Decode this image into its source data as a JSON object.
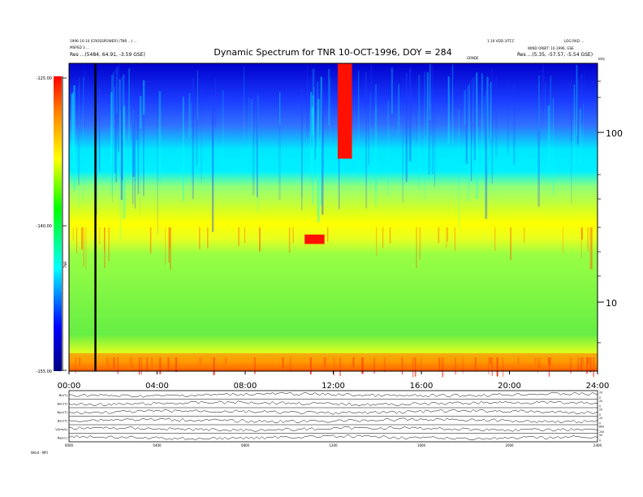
{
  "chart_data": [
    {
      "type": "heatmap",
      "title": "Dynamic Spectrum for TNR 10-OCT-1996, DOY = 284",
      "header_left": [
        "1996-10-10 [CROSSPOWER] (TNR ...) ...",
        "MSPSD 3 ...",
        "Res  ...(5484, 64.91, -3.59 GSE)"
      ],
      "header_right": [
        "1.10 VDD 3/TCC",
        "LOG RAD ...",
        "WIND ORBIT: 10.1996, GSE",
        "Res  ...(5.35, -57.57, -5.54 GSE)"
      ],
      "header_right_unit": "kHz",
      "header_mid_small": "GRNDE",
      "colorbar": {
        "label": "TNR",
        "ticks": [
          "-125.00",
          "-140.00",
          "-155.00"
        ],
        "range": [
          -155,
          -125
        ]
      },
      "x_axis": {
        "unit": "hours UT",
        "range": [
          0,
          24
        ],
        "ticks": [
          "00:00",
          "04:00",
          "08:00",
          "12:00",
          "16:00",
          "20:00",
          "24:00"
        ]
      },
      "y_axis": {
        "scale": "log",
        "unit": "kHz",
        "ticks": [
          "100",
          "10"
        ]
      },
      "features": [
        {
          "kind": "low-frequency red band",
          "t_start": 0.0,
          "t_end": 24.0,
          "freq_range_khz": [
            4.0,
            5.0
          ]
        },
        {
          "kind": "type III burst",
          "t_start": 12.2,
          "t_end": 12.85,
          "freq_range_khz": [
            70,
            280
          ]
        },
        {
          "kind": "red blob",
          "t_start": 10.7,
          "t_end": 11.6,
          "freq_range_khz": [
            22,
            25
          ]
        },
        {
          "kind": "vertical marker",
          "t": 1.2
        }
      ]
    },
    {
      "type": "line",
      "description_panel": "stacked solar wind time series",
      "x_axis": {
        "range": [
          0,
          24
        ],
        "ticks": [
          "0000",
          "0400",
          "0800",
          "1200",
          "1600",
          "2000",
          "2400"
        ]
      },
      "series": [
        {
          "name": "B(nT)",
          "right_ticks": [
            "20",
            "0"
          ]
        },
        {
          "name": "Bx(nT)",
          "right_ticks": [
            "20",
            "0"
          ]
        },
        {
          "name": "By(nT)",
          "right_ticks": [
            "20",
            "0"
          ]
        },
        {
          "name": "Bz(nT)",
          "right_ticks": [
            "20",
            "0"
          ]
        },
        {
          "name": "V(km/s)",
          "right_ticks": [
            "800",
            "200"
          ]
        },
        {
          "name": "Np(cc)",
          "right_ticks": [
            "50",
            "0"
          ]
        }
      ],
      "footer_label": "Wind - MFI"
    }
  ]
}
